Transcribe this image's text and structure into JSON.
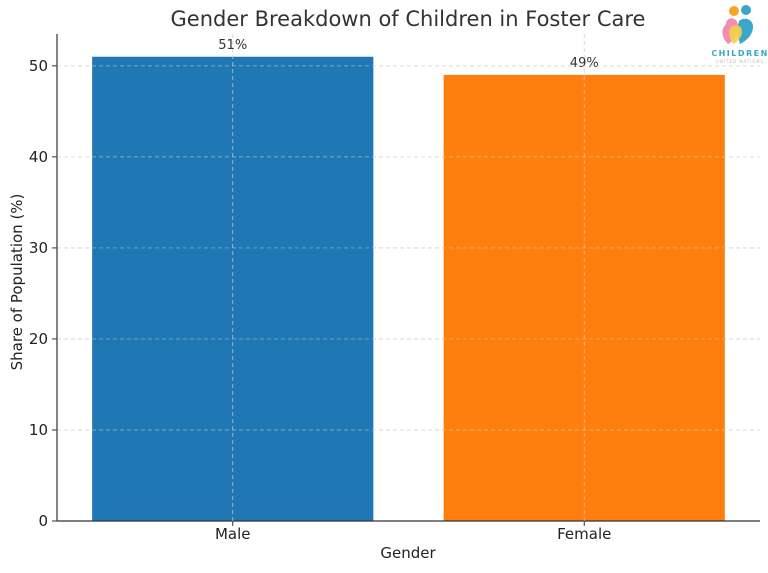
{
  "chart_data": {
    "type": "bar",
    "title": "Gender Breakdown of Children in Foster Care",
    "xlabel": "Gender",
    "ylabel": "Share of Population (%)",
    "categories": [
      "Male",
      "Female"
    ],
    "values": [
      51,
      49
    ],
    "data_labels": [
      "51%",
      "49%"
    ],
    "colors": [
      "#1f77b4",
      "#ff7f0e"
    ],
    "ylim": [
      0,
      53.5
    ],
    "yticks": [
      0,
      10,
      20,
      30,
      40,
      50
    ],
    "grid": true
  },
  "logo": {
    "text": "CHILDREN",
    "subtext": "UNITED NATIONS"
  }
}
